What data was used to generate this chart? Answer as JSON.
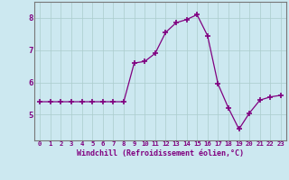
{
  "x": [
    0,
    1,
    2,
    3,
    4,
    5,
    6,
    7,
    8,
    9,
    10,
    11,
    12,
    13,
    14,
    15,
    16,
    17,
    18,
    19,
    20,
    21,
    22,
    23
  ],
  "y": [
    5.4,
    5.4,
    5.4,
    5.4,
    5.4,
    5.4,
    5.4,
    5.4,
    5.4,
    6.6,
    6.65,
    6.9,
    7.55,
    7.85,
    7.95,
    8.1,
    7.45,
    5.95,
    5.2,
    4.55,
    5.05,
    5.45,
    5.55,
    5.6
  ],
  "line_color": "#800080",
  "marker_color": "#800080",
  "bg_color": "#cce8f0",
  "grid_color": "#aacccc",
  "xlabel": "Windchill (Refroidissement éolien,°C)",
  "xlabel_color": "#800080",
  "tick_color": "#800080",
  "spine_color": "#777777",
  "ylim": [
    4.2,
    8.5
  ],
  "xlim": [
    -0.5,
    23.5
  ],
  "yticks": [
    5,
    6,
    7,
    8
  ],
  "xtick_labels": [
    "0",
    "1",
    "2",
    "3",
    "4",
    "5",
    "6",
    "7",
    "8",
    "9",
    "10",
    "11",
    "12",
    "13",
    "14",
    "15",
    "16",
    "17",
    "18",
    "19",
    "20",
    "21",
    "22",
    "23"
  ]
}
